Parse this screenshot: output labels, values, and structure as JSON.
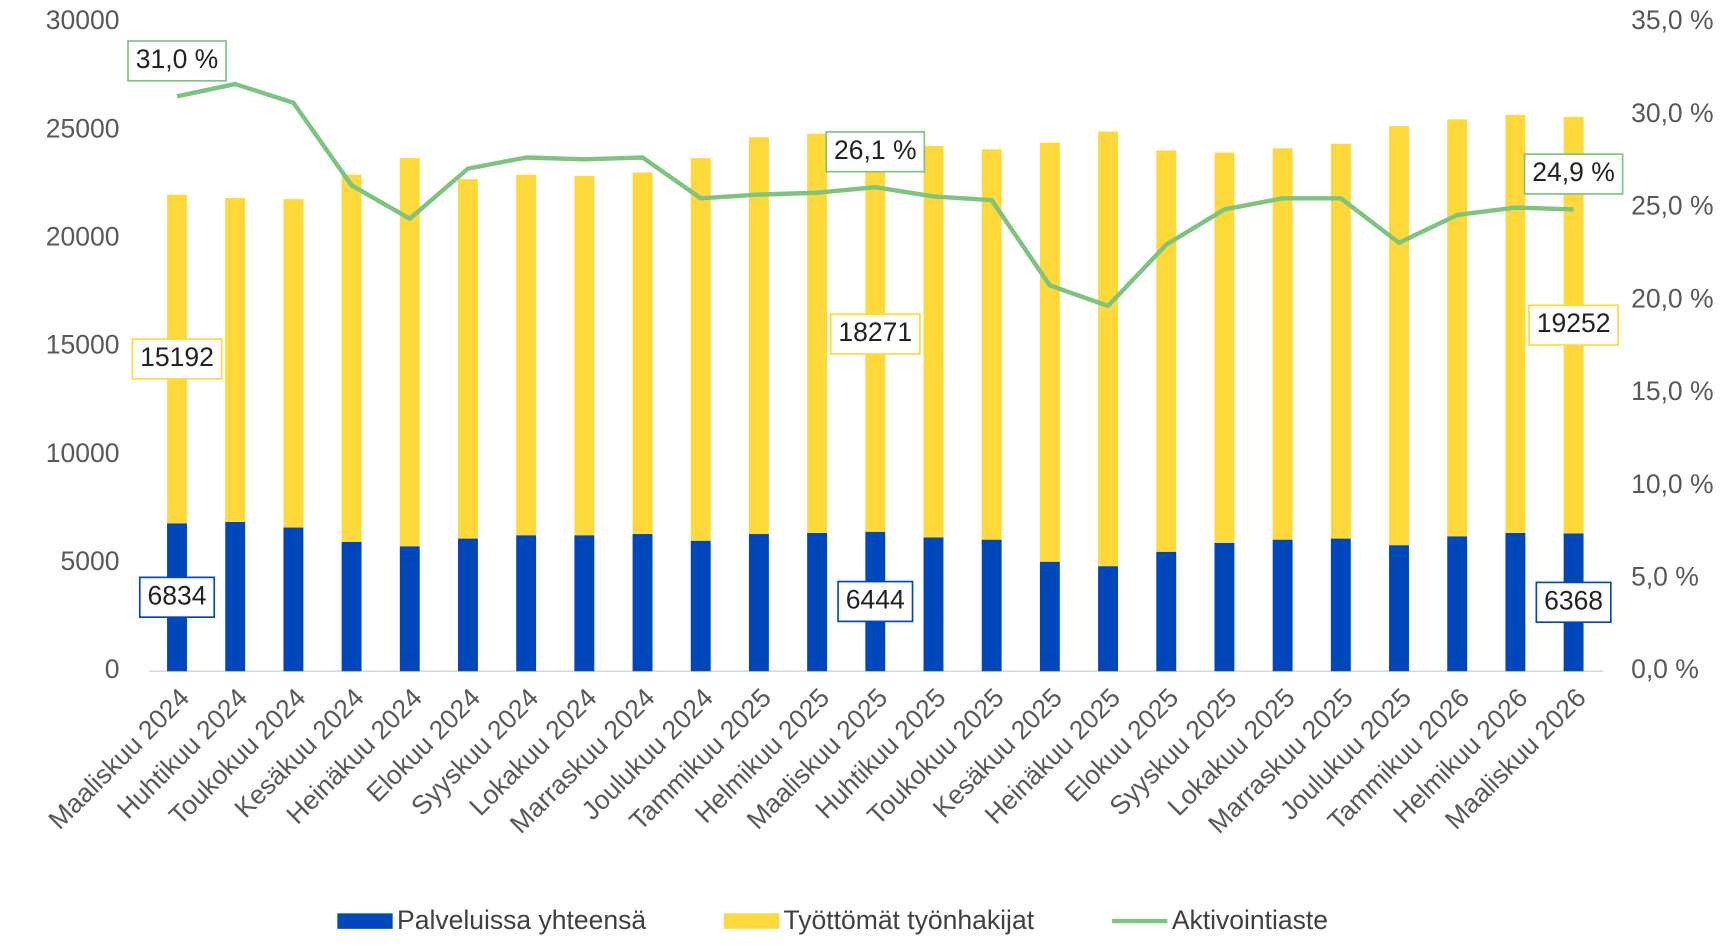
{
  "chart_data": {
    "type": "bar",
    "categories": [
      "Maaliskuu 2024",
      "Huhtikuu 2024",
      "Toukokuu 2024",
      "Kesäkuu 2024",
      "Heinäkuu 2024",
      "Elokuu 2024",
      "Syyskuu 2024",
      "Lokakuu 2024",
      "Marraskuu 2024",
      "Joulukuu 2024",
      "Tammikuu 2025",
      "Helmikuu 2025",
      "Maaliskuu 2025",
      "Huhtikuu 2025",
      "Toukokuu 2025",
      "Kesäkuu 2025",
      "Heinäkuu 2025",
      "Elokuu 2025",
      "Syyskuu 2025",
      "Lokakuu 2025",
      "Marraskuu 2025",
      "Joulukuu 2025",
      "Tammikuu 2026",
      "Helmikuu 2026",
      "Maaliskuu 2026"
    ],
    "series": [
      {
        "name": "Palveluissa yhteensä",
        "color": "#0047bb",
        "stacked": true,
        "values": [
          6834,
          6900,
          6640,
          5980,
          5775,
          6130,
          6285,
          6285,
          6340,
          6030,
          6340,
          6390,
          6444,
          6180,
          6080,
          5060,
          4855,
          5520,
          5930,
          6080,
          6130,
          5825,
          6235,
          6390,
          6368
        ],
        "value_labels": [
          "6834",
          null,
          null,
          null,
          null,
          null,
          null,
          null,
          null,
          null,
          null,
          null,
          "6444",
          null,
          null,
          null,
          null,
          null,
          null,
          null,
          null,
          null,
          null,
          null,
          "6368"
        ]
      },
      {
        "name": "Työttömät työnhakijat",
        "color": "#ffd939",
        "stacked": true,
        "values": [
          15192,
          14970,
          15180,
          16970,
          17940,
          16610,
          16660,
          16610,
          16710,
          17680,
          18340,
          18450,
          18271,
          18100,
          18040,
          19370,
          20090,
          18550,
          18040,
          18090,
          18250,
          19370,
          19270,
          19320,
          19252
        ],
        "value_labels": [
          "15192",
          null,
          null,
          null,
          null,
          null,
          null,
          null,
          null,
          null,
          null,
          null,
          "18271",
          null,
          null,
          null,
          null,
          null,
          null,
          null,
          null,
          null,
          null,
          null,
          "19252"
        ]
      },
      {
        "name": "Aktivointiaste",
        "color": "#7dc47f",
        "type": "line",
        "axis": "y2",
        "values": [
          31.0,
          31.66,
          30.65,
          26.2,
          24.4,
          27.1,
          27.7,
          27.6,
          27.7,
          25.5,
          25.7,
          25.8,
          26.1,
          25.6,
          25.4,
          20.8,
          19.7,
          23.0,
          24.9,
          25.5,
          25.5,
          23.1,
          24.6,
          25.0,
          24.9
        ],
        "value_labels": [
          "31,0 %",
          null,
          null,
          null,
          null,
          null,
          null,
          null,
          null,
          null,
          null,
          null,
          "26,1 %",
          null,
          null,
          null,
          null,
          null,
          null,
          null,
          null,
          null,
          null,
          null,
          "24,9 %"
        ]
      }
    ],
    "ylim": [
      0,
      30000
    ],
    "yticks": [
      0,
      5000,
      10000,
      15000,
      20000,
      25000,
      30000
    ],
    "y2lim": [
      0,
      35
    ],
    "y2ticks": [
      {
        "value": 0,
        "label": "0,0 %"
      },
      {
        "value": 5,
        "label": "5,0 %"
      },
      {
        "value": 10,
        "label": "10,0 %"
      },
      {
        "value": 15,
        "label": "15,0 %"
      },
      {
        "value": 20,
        "label": "20,0 %"
      },
      {
        "value": 25,
        "label": "25,0 %"
      },
      {
        "value": 30,
        "label": "30,0 %"
      },
      {
        "value": 35,
        "label": "35,0 %"
      }
    ],
    "grid": false,
    "legend": "bottom"
  }
}
